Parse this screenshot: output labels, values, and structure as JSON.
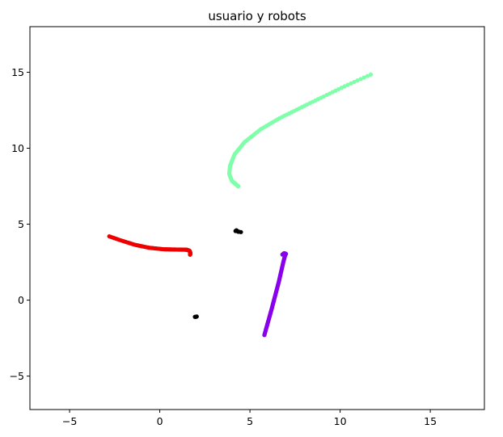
{
  "chart_data": {
    "type": "scatter",
    "title": "usuario y robots",
    "xlabel": "",
    "ylabel": "",
    "xlim": [
      -7.2,
      18.0
    ],
    "ylim": [
      -7.2,
      18.0
    ],
    "xticks": [
      -5,
      0,
      5,
      10,
      15
    ],
    "yticks": [
      -5,
      0,
      5,
      10,
      15
    ],
    "grid": false,
    "series": [
      {
        "color": "#7FFFAA",
        "shape": "curve",
        "sampling": "dense-to-sparse",
        "count": 110,
        "points": [
          [
            4.35,
            7.5
          ],
          [
            4.0,
            7.85
          ],
          [
            3.85,
            8.3
          ],
          [
            3.9,
            8.85
          ],
          [
            4.15,
            9.6
          ],
          [
            4.7,
            10.4
          ],
          [
            5.6,
            11.25
          ],
          [
            6.6,
            11.95
          ],
          [
            7.7,
            12.6
          ],
          [
            8.9,
            13.3
          ],
          [
            10.2,
            14.05
          ],
          [
            11.7,
            14.85
          ]
        ]
      },
      {
        "color": "#EE0000",
        "shape": "curve",
        "sampling": "sparse-to-dense",
        "count": 95,
        "points": [
          [
            -2.8,
            4.2
          ],
          [
            -2.2,
            3.95
          ],
          [
            -1.4,
            3.65
          ],
          [
            -0.6,
            3.45
          ],
          [
            0.2,
            3.35
          ],
          [
            0.9,
            3.33
          ],
          [
            1.5,
            3.32
          ],
          [
            1.65,
            3.25
          ],
          [
            1.7,
            3.1
          ],
          [
            1.68,
            3.0
          ]
        ]
      },
      {
        "color": "#8800EE",
        "shape": "curve",
        "sampling": "even",
        "count": 90,
        "points": [
          [
            5.8,
            -2.3
          ],
          [
            6.2,
            -0.6
          ],
          [
            6.6,
            1.2
          ],
          [
            6.85,
            2.5
          ],
          [
            6.95,
            2.95
          ],
          [
            7.0,
            3.05
          ],
          [
            6.9,
            3.1
          ],
          [
            6.8,
            3.0
          ]
        ]
      },
      {
        "color": "#000000",
        "shape": "clusters",
        "points": [
          [
            4.2,
            4.55
          ],
          [
            4.3,
            4.55
          ],
          [
            4.4,
            4.5
          ],
          [
            4.5,
            4.48
          ],
          [
            4.35,
            4.5
          ],
          [
            4.25,
            4.6
          ],
          [
            1.95,
            -1.1
          ],
          [
            2.0,
            -1.1
          ],
          [
            2.05,
            -1.08
          ]
        ]
      }
    ]
  }
}
